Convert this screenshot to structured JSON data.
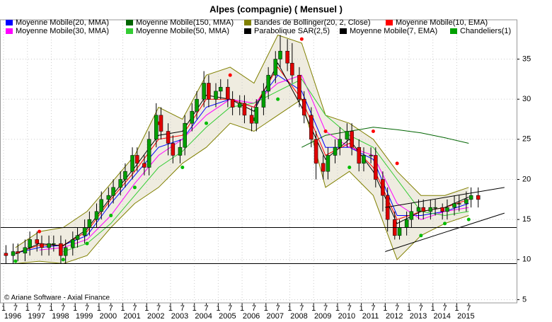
{
  "chart_data": {
    "type": "candlestick",
    "title": "Alpes (compagnie)  ( Mensuel )",
    "copyright": "© Ariane Software - Axial Finance",
    "xlim": [
      1995.85,
      2017.51
    ],
    "ylim": [
      4.6,
      39.9
    ],
    "yticks": [
      5,
      10,
      15,
      20,
      25,
      30,
      35
    ],
    "xticks": [
      {
        "value": 1996.0,
        "label": "1"
      },
      {
        "value": 1996.5,
        "label": "7"
      },
      {
        "value": 1997.0,
        "label": "1"
      },
      {
        "value": 1997.5,
        "label": "7"
      },
      {
        "value": 1998.0,
        "label": "1"
      },
      {
        "value": 1998.5,
        "label": "7"
      },
      {
        "value": 1999.0,
        "label": "1"
      },
      {
        "value": 1999.5,
        "label": "7"
      },
      {
        "value": 2000.0,
        "label": "1"
      },
      {
        "value": 2000.5,
        "label": "7"
      },
      {
        "value": 2001.0,
        "label": "1"
      },
      {
        "value": 2001.5,
        "label": "7"
      },
      {
        "value": 2002.0,
        "label": "1"
      },
      {
        "value": 2002.5,
        "label": "7"
      },
      {
        "value": 2003.0,
        "label": "1"
      },
      {
        "value": 2003.5,
        "label": "7"
      },
      {
        "value": 2004.0,
        "label": "1"
      },
      {
        "value": 2004.5,
        "label": "7"
      },
      {
        "value": 2005.0,
        "label": "1"
      },
      {
        "value": 2005.5,
        "label": "7"
      },
      {
        "value": 2006.0,
        "label": "1"
      },
      {
        "value": 2006.5,
        "label": "7"
      },
      {
        "value": 2007.0,
        "label": "1"
      },
      {
        "value": 2007.5,
        "label": "7"
      },
      {
        "value": 2008.0,
        "label": "1"
      },
      {
        "value": 2008.5,
        "label": "7"
      },
      {
        "value": 2009.0,
        "label": "1"
      },
      {
        "value": 2009.5,
        "label": "7"
      },
      {
        "value": 2010.0,
        "label": "1"
      },
      {
        "value": 2010.5,
        "label": "7"
      },
      {
        "value": 2011.0,
        "label": "1"
      },
      {
        "value": 2011.5,
        "label": "7"
      },
      {
        "value": 2012.0,
        "label": "1"
      },
      {
        "value": 2012.5,
        "label": "7"
      },
      {
        "value": 2013.0,
        "label": "1"
      },
      {
        "value": 2013.5,
        "label": "7"
      },
      {
        "value": 2014.0,
        "label": "1"
      },
      {
        "value": 2014.5,
        "label": "7"
      },
      {
        "value": 2015.0,
        "label": "1"
      },
      {
        "value": 2015.5,
        "label": "7"
      }
    ],
    "years": [
      1996,
      1997,
      1998,
      1999,
      2000,
      2001,
      2002,
      2003,
      2004,
      2005,
      2006,
      2007,
      2008,
      2009,
      2010,
      2011,
      2012,
      2013,
      2014,
      2015
    ],
    "grid": true,
    "hlines": [
      14,
      9.5
    ],
    "trendlines": [
      {
        "x": [
          2012.0,
          2017.0
        ],
        "y": [
          11,
          15.8
        ]
      },
      {
        "x": [
          2012.0,
          2017.0
        ],
        "y": [
          16.5,
          19
        ]
      }
    ],
    "series": [
      {
        "name": "Moyenne Mobile(20, MMA)",
        "kind": "line",
        "color": "#0000ff",
        "x": [
          1996.5,
          1997.5,
          1998.5,
          1999.5,
          2000.5,
          2001.5,
          2002.5,
          2003.5,
          2004.5,
          2005.5,
          2006.5,
          2007.5,
          2008.5,
          2009.5,
          2010.5,
          2011.5,
          2012.5,
          2013.5,
          2014.5,
          2015.5
        ],
        "values": [
          10.8,
          11.5,
          11.8,
          13,
          17,
          20.5,
          24,
          25,
          29,
          30,
          29,
          33,
          31,
          24,
          24,
          22.5,
          15.5,
          15.5,
          16,
          17
        ]
      },
      {
        "name": "Moyenne Mobile(150, MMA)",
        "kind": "line",
        "color": "#006400",
        "x": [
          2008.5,
          2009.5,
          2010.5,
          2011.5,
          2012.5,
          2013.5,
          2014.5,
          2015.5
        ],
        "values": [
          24,
          25.5,
          26,
          26.5,
          26.2,
          25.8,
          25.2,
          24.5
        ]
      },
      {
        "name": "Bandes de Bollinger(20, 2, Close)",
        "kind": "band",
        "color": "#808000",
        "fill": "#efece0",
        "x": [
          1996.5,
          1997.5,
          1998.5,
          1999.5,
          2000.5,
          2001.5,
          2002.5,
          2003.5,
          2004.5,
          2005.5,
          2006.5,
          2007.5,
          2008.5,
          2009.5,
          2010.5,
          2011.5,
          2012.5,
          2013.5,
          2014.5,
          2015.5
        ],
        "upper": [
          11.5,
          13.5,
          14,
          16,
          19.5,
          23,
          29,
          27.5,
          33,
          34,
          32,
          38,
          37,
          28,
          27,
          25,
          21,
          18,
          18,
          19
        ],
        "lower": [
          9.5,
          9.8,
          9.5,
          10.5,
          14,
          17,
          19,
          22,
          24,
          27,
          26,
          28,
          30,
          19,
          21,
          18,
          10,
          13,
          14.5,
          15.5
        ]
      },
      {
        "name": "Moyenne Mobile(10, EMA)",
        "kind": "line",
        "color": "#ff0000",
        "x": [
          1996.5,
          1997.5,
          1998.5,
          1999.5,
          2000.5,
          2001.5,
          2002.5,
          2003.5,
          2004.5,
          2005.5,
          2006.5,
          2007.5,
          2008.5,
          2009.5,
          2010.5,
          2011.5,
          2012.5,
          2013.5,
          2014.5,
          2015.5
        ],
        "values": [
          10.8,
          11.8,
          11.8,
          13.5,
          17.5,
          21,
          25,
          25.5,
          30,
          30,
          29,
          34,
          30,
          23,
          24.5,
          21.5,
          15,
          16,
          16.5,
          17.5
        ]
      },
      {
        "name": "Moyenne Mobile(30, MMA)",
        "kind": "line",
        "color": "#ff00ff",
        "x": [
          1996.5,
          1997.5,
          1998.5,
          1999.5,
          2000.5,
          2001.5,
          2002.5,
          2003.5,
          2004.5,
          2005.5,
          2006.5,
          2007.5,
          2008.5,
          2009.5,
          2010.5,
          2011.5,
          2012.5,
          2013.5,
          2014.5,
          2015.5
        ],
        "values": [
          null,
          11.2,
          11.5,
          12.5,
          15.5,
          19.5,
          23,
          25,
          28,
          30,
          29.5,
          32,
          33,
          26,
          24,
          23,
          17,
          15,
          16,
          16.5
        ]
      },
      {
        "name": "Moyenne Mobile(50, MMA)",
        "kind": "line",
        "color": "#33cc33",
        "x": [
          1996.5,
          1997.5,
          1998.5,
          1999.5,
          2000.5,
          2001.5,
          2002.5,
          2003.5,
          2004.5,
          2005.5,
          2006.5,
          2007.5,
          2008.5,
          2009.5,
          2010.5,
          2011.5,
          2012.5,
          2013.5,
          2014.5,
          2015.5
        ],
        "values": [
          null,
          null,
          11,
          12,
          14.5,
          18,
          21.5,
          23.5,
          26.5,
          29,
          29.5,
          31,
          32.5,
          28,
          25.5,
          24,
          20,
          16,
          15.5,
          16
        ]
      },
      {
        "name": "Parabolique SAR(2,5)",
        "kind": "dots",
        "color": "#000000",
        "above_color": "#ff0000",
        "below_color": "#00bb00",
        "x": [
          1996.5,
          1997.5,
          1998.5,
          1999.5,
          2000.5,
          2001.5,
          2002.5,
          2003.5,
          2004.5,
          2005.5,
          2006.5,
          2007.5,
          2008.5,
          2009.5,
          2010.5,
          2011.5,
          2012.5,
          2013.5,
          2014.5,
          2015.5
        ],
        "values": [
          9.8,
          13.5,
          10,
          12,
          15.5,
          19,
          27,
          21.5,
          27,
          33,
          27.5,
          30,
          37.5,
          26,
          21.5,
          26,
          22,
          13,
          14.5,
          15
        ]
      },
      {
        "name": "Moyenne Mobile(7, EMA)",
        "kind": "line",
        "color": "#000000",
        "x": [
          1996.5,
          1997.5,
          1998.5,
          1999.5,
          2000.5,
          2001.5,
          2002.5,
          2003.5,
          2004.5,
          2005.5,
          2006.5,
          2007.5,
          2008.5,
          2009.5,
          2010.5,
          2011.5,
          2012.5,
          2013.5,
          2014.5,
          2015.5
        ],
        "values": [
          10.7,
          12,
          11.7,
          13.8,
          17.8,
          21.5,
          25.5,
          26,
          30.5,
          30,
          28.5,
          34.5,
          29,
          22.5,
          25,
          21,
          14.5,
          16,
          16.5,
          17.8
        ]
      },
      {
        "name": "Chandeliers(1)",
        "kind": "candles",
        "color": "#00a000",
        "up_color": "#00a000",
        "down_color": "#e00000",
        "x": [
          1996.1,
          1996.4,
          1996.6,
          1996.9,
          1997.1,
          1997.4,
          1997.6,
          1997.9,
          1998.1,
          1998.4,
          1998.6,
          1998.9,
          1999.1,
          1999.4,
          1999.6,
          1999.9,
          2000.1,
          2000.4,
          2000.6,
          2000.9,
          2001.1,
          2001.4,
          2001.6,
          2001.9,
          2002.1,
          2002.4,
          2002.6,
          2002.9,
          2003.1,
          2003.4,
          2003.6,
          2003.9,
          2004.1,
          2004.4,
          2004.6,
          2004.9,
          2005.1,
          2005.4,
          2005.6,
          2005.9,
          2006.1,
          2006.4,
          2006.6,
          2006.9,
          2007.1,
          2007.4,
          2007.6,
          2007.9,
          2008.1,
          2008.4,
          2008.6,
          2008.9,
          2009.1,
          2009.4,
          2009.6,
          2009.9,
          2010.1,
          2010.4,
          2010.6,
          2010.9,
          2011.1,
          2011.4,
          2011.6,
          2011.9,
          2012.1,
          2012.4,
          2012.6,
          2012.9,
          2013.1,
          2013.4,
          2013.6,
          2013.9,
          2014.1,
          2014.4,
          2014.6,
          2014.9,
          2015.1,
          2015.4,
          2015.6,
          2015.9
        ],
        "open": [
          10.8,
          10.5,
          11,
          10.8,
          11.5,
          12.5,
          12,
          11.5,
          12,
          12,
          10.5,
          11.5,
          12.5,
          13,
          14,
          15,
          16,
          17.5,
          18,
          19,
          20,
          21,
          23,
          22,
          21.5,
          25,
          28,
          26,
          24.5,
          23,
          24,
          27,
          28.5,
          30,
          32,
          30,
          31,
          31.5,
          30,
          29,
          29.5,
          28,
          27,
          29,
          31,
          33,
          35,
          36,
          34.5,
          33,
          30,
          28,
          25,
          22,
          21,
          23,
          24,
          25,
          26,
          24,
          22,
          23,
          23,
          20,
          18,
          15,
          13,
          14,
          15,
          16,
          16.5,
          16,
          16.5,
          16.5,
          16,
          16.5,
          17,
          17,
          17.5,
          18
        ],
        "high": [
          11.8,
          12,
          12,
          12.5,
          13.5,
          13.5,
          13,
          13,
          13,
          13,
          12.5,
          13.5,
          14,
          15,
          16,
          17,
          18.5,
          19,
          20,
          21,
          22,
          24,
          24,
          23,
          26,
          29.5,
          29,
          27,
          25.5,
          25,
          28,
          29.5,
          31,
          33.5,
          33,
          32,
          32.5,
          32.5,
          31,
          30.5,
          30.5,
          29,
          30,
          32,
          34,
          36,
          38,
          37.5,
          37,
          34,
          31,
          29,
          26,
          23,
          24,
          25,
          26.5,
          27,
          27,
          25,
          24,
          24,
          24,
          21,
          19,
          16,
          15,
          16,
          17,
          17.5,
          17.5,
          17.5,
          17.5,
          17,
          17.5,
          18,
          18,
          18.5,
          19,
          19
        ],
        "low": [
          9.5,
          9.5,
          9.8,
          9.8,
          10.5,
          11,
          10.5,
          10.5,
          11,
          9.5,
          9.5,
          10.5,
          11.5,
          12,
          13,
          14,
          15,
          16.5,
          17,
          18,
          19,
          20,
          21,
          20.5,
          20.5,
          24,
          25,
          23,
          22,
          22,
          23,
          26,
          27.5,
          29,
          29,
          29,
          30,
          29,
          28,
          28,
          27,
          26,
          26,
          28,
          30,
          32,
          34,
          33.5,
          32,
          29,
          27,
          24,
          20,
          20,
          20,
          22,
          23,
          24,
          23,
          21,
          21,
          22,
          19,
          16,
          13.5,
          12.5,
          12.5,
          13,
          14,
          15,
          15,
          15,
          15.5,
          15,
          15,
          15.5,
          16,
          16,
          16.5,
          16.5
        ],
        "close": [
          10.5,
          11,
          10.8,
          11.5,
          12.5,
          12,
          11.5,
          12,
          12,
          10.5,
          11.5,
          12.5,
          13,
          14,
          15,
          16,
          17.5,
          18,
          19,
          20,
          21,
          23,
          22,
          21.5,
          25,
          28,
          26,
          24.5,
          23,
          24,
          27,
          28.5,
          30,
          32,
          30,
          31,
          31.5,
          30,
          29,
          29.5,
          28,
          27,
          29,
          31,
          33,
          35,
          36,
          34.5,
          33,
          30,
          28,
          25,
          22,
          21,
          23,
          24,
          25,
          26,
          24,
          22,
          23,
          23,
          20,
          18,
          15,
          13,
          14,
          15,
          16,
          16.5,
          16,
          16.5,
          16.5,
          16,
          16.5,
          17,
          17,
          17.5,
          18,
          17.5
        ]
      }
    ]
  }
}
